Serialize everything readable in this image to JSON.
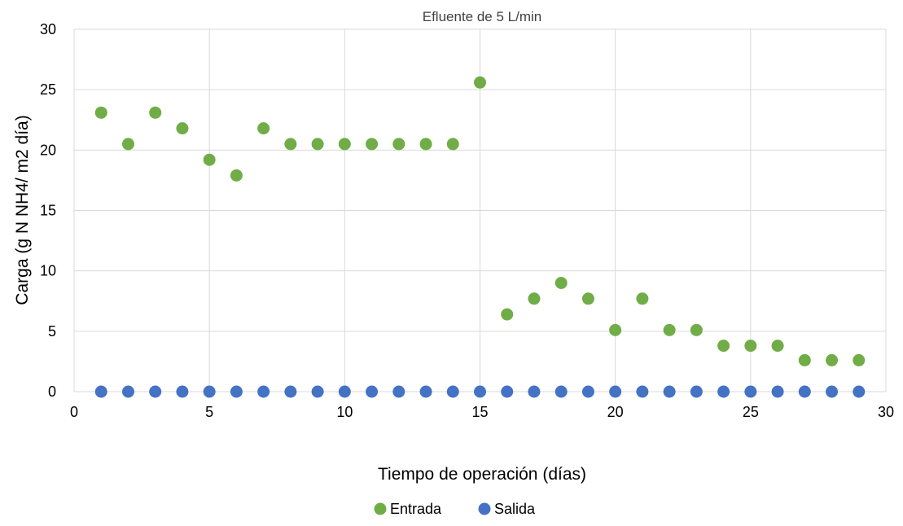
{
  "chart_data": {
    "type": "scatter",
    "title": "Efluente de 5 L/min",
    "xlabel": "Tiempo de operación (días)",
    "ylabel": "Carga (g N NH4/ m2 día)",
    "xlim": [
      0,
      30
    ],
    "ylim": [
      0,
      30
    ],
    "x_ticks": [
      0,
      5,
      10,
      15,
      20,
      25,
      30
    ],
    "y_ticks": [
      0,
      5,
      10,
      15,
      20,
      25,
      30
    ],
    "grid": true,
    "legend_position": "bottom",
    "series": [
      {
        "name": "Entrada",
        "color": "#70ad47",
        "x": [
          1,
          2,
          3,
          4,
          5,
          6,
          7,
          8,
          9,
          10,
          11,
          12,
          13,
          14,
          15,
          16,
          17,
          18,
          19,
          20,
          21,
          22,
          23,
          24,
          25,
          26,
          27,
          28,
          29
        ],
        "y": [
          23.1,
          20.5,
          23.1,
          21.8,
          19.2,
          17.9,
          21.8,
          20.5,
          20.5,
          20.5,
          20.5,
          20.5,
          20.5,
          20.5,
          25.6,
          6.4,
          7.7,
          9.0,
          7.7,
          5.1,
          7.7,
          5.1,
          5.1,
          3.8,
          3.8,
          3.8,
          2.6,
          2.6,
          2.6
        ]
      },
      {
        "name": "Salida",
        "color": "#4472c4",
        "x": [
          1,
          2,
          3,
          4,
          5,
          6,
          7,
          8,
          9,
          10,
          11,
          12,
          13,
          14,
          15,
          16,
          17,
          18,
          19,
          20,
          21,
          22,
          23,
          24,
          25,
          26,
          27,
          28,
          29
        ],
        "y": [
          0,
          0,
          0,
          0,
          0,
          0,
          0,
          0,
          0,
          0,
          0,
          0,
          0,
          0,
          0,
          0,
          0,
          0,
          0,
          0,
          0,
          0,
          0,
          0,
          0,
          0,
          0,
          0,
          0
        ]
      }
    ]
  }
}
